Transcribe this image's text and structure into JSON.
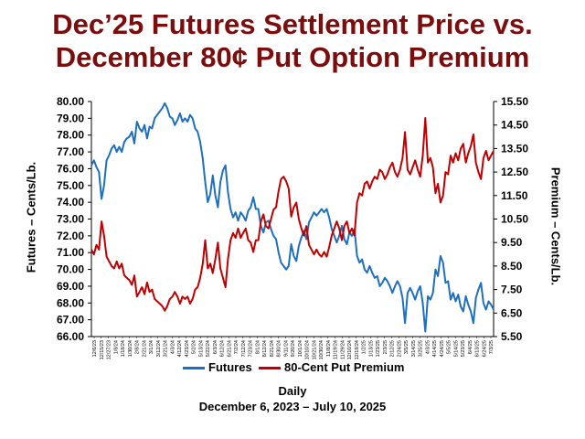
{
  "chart_data": {
    "type": "line",
    "title_line1": "Dec’25 Futures Settlement Price vs.",
    "title_line2": "December 80¢ Put Option Premium",
    "ylabel_left": "Futures – Cents/Lb.",
    "ylabel_right": "Premium – Cents/Lb.",
    "xlabel": "Daily",
    "date_range": "December 6, 2023 – July 10, 2025",
    "ylim_left": [
      66.0,
      80.0
    ],
    "ylim_right": [
      5.5,
      15.5
    ],
    "left_ticks": [
      "80.00",
      "79.00",
      "78.00",
      "77.00",
      "76.00",
      "75.00",
      "74.00",
      "73.00",
      "72.00",
      "71.00",
      "70.00",
      "69.00",
      "68.00",
      "67.00",
      "66.00"
    ],
    "right_ticks": [
      "15.50",
      "14.50",
      "13.50",
      "12.50",
      "11.50",
      "10.50",
      "9.50",
      "8.50",
      "7.50",
      "6.50",
      "5.50"
    ],
    "x_ticks": [
      "12/6/23",
      "12/15/23",
      "12/27/23",
      "1/8/24",
      "1/18/24",
      "1/30/24",
      "2/8/24",
      "2/21/24",
      "3/1/24",
      "3/12/24",
      "3/21/24",
      "4/3/24",
      "4/12/24",
      "4/23/24",
      "5/2/24",
      "5/13/24",
      "5/22/24",
      "6/3/24",
      "6/12/24",
      "6/21/24",
      "7/2/24",
      "7/12/24",
      "7/23/24",
      "8/1/24",
      "8/12/24",
      "8/21/24",
      "8/30/24",
      "9/11/24",
      "9/20/24",
      "10/1/24",
      "10/10/24",
      "10/21/24",
      "10/30/24",
      "11/8/24",
      "11/19/24",
      "11/29/24",
      "12/10/24",
      "12/19/24",
      "1/2/25",
      "1/13/25",
      "1/23/25",
      "2/3/25",
      "2/12/25",
      "2/24/25",
      "3/5/25",
      "3/14/25",
      "3/25/25",
      "4/3/25",
      "4/14/25",
      "4/24/25",
      "5/5/25",
      "5/14/25",
      "5/23/25",
      "6/4/25",
      "6/13/25",
      "6/24/25",
      "7/3/25"
    ],
    "grid": false,
    "legend_position": "bottom",
    "series": [
      {
        "name": "Futures",
        "axis": "left",
        "color": "#1f6fc0",
        "values": [
          76.2,
          76.5,
          76.1,
          75.8,
          74.2,
          75.0,
          76.5,
          76.8,
          77.2,
          77.4,
          77.0,
          77.3,
          77.0,
          77.6,
          77.8,
          77.9,
          78.2,
          77.5,
          78.8,
          78.4,
          78.2,
          78.6,
          77.8,
          78.5,
          78.4,
          79.0,
          79.2,
          79.4,
          79.6,
          79.9,
          79.6,
          79.1,
          79.0,
          78.6,
          78.9,
          79.3,
          78.8,
          79.0,
          78.8,
          79.2,
          79.0,
          78.4,
          78.2,
          77.6,
          76.6,
          75.2,
          74.0,
          74.5,
          75.6,
          74.4,
          73.7,
          75.2,
          75.9,
          76.2,
          74.6,
          73.6,
          73.1,
          73.4,
          72.9,
          73.4,
          73.2,
          72.9,
          73.5,
          73.7,
          74.3,
          73.6,
          73.6,
          72.6,
          72.2,
          72.8,
          72.9,
          72.4,
          72.0,
          71.8,
          71.0,
          70.4,
          70.2,
          70.0,
          70.2,
          71.5,
          70.8,
          70.5,
          71.4,
          71.9,
          72.3,
          71.8,
          72.8,
          73.1,
          73.4,
          73.2,
          73.4,
          73.6,
          73.4,
          73.6,
          73.1,
          72.4,
          72.0,
          71.6,
          72.0,
          72.6,
          71.8,
          71.5,
          72.2,
          72.0,
          72.4,
          70.8,
          70.4,
          70.6,
          70.0,
          69.8,
          70.2,
          69.8,
          69.5,
          69.6,
          69.0,
          69.2,
          69.5,
          69.3,
          69.0,
          68.6,
          69.0,
          69.3,
          69.0,
          68.3,
          66.8,
          68.6,
          68.9,
          68.6,
          68.2,
          68.7,
          69.0,
          68.0,
          66.3,
          68.4,
          68.2,
          68.6,
          70.0,
          69.6,
          70.8,
          70.4,
          69.2,
          69.3,
          68.2,
          68.6,
          68.1,
          68.5,
          67.8,
          67.5,
          68.4,
          67.9,
          67.5,
          66.8,
          68.3,
          68.8,
          69.2,
          68.0,
          67.6,
          68.1,
          67.9,
          67.6
        ]
      },
      {
        "name": "80-Cent Put Premium",
        "axis": "right",
        "color": "#c00000",
        "values": [
          9.2,
          9.0,
          9.4,
          9.2,
          10.4,
          9.8,
          8.9,
          8.7,
          8.5,
          8.4,
          8.7,
          8.4,
          8.6,
          8.1,
          8.0,
          7.9,
          7.7,
          8.1,
          7.2,
          7.4,
          7.6,
          7.3,
          7.8,
          7.4,
          7.5,
          7.1,
          7.0,
          6.9,
          6.8,
          6.6,
          6.8,
          7.1,
          7.2,
          7.4,
          7.2,
          6.9,
          7.2,
          7.1,
          7.2,
          6.9,
          7.1,
          7.5,
          7.6,
          8.0,
          8.6,
          9.6,
          8.4,
          8.6,
          8.2,
          8.8,
          9.5,
          8.4,
          8.0,
          7.6,
          8.8,
          9.6,
          9.9,
          9.7,
          10.1,
          9.7,
          9.9,
          10.1,
          9.6,
          9.5,
          9.1,
          9.6,
          9.6,
          10.4,
          10.7,
          10.2,
          10.1,
          10.5,
          10.9,
          11.0,
          11.7,
          12.2,
          12.3,
          12.1,
          11.8,
          10.6,
          11.0,
          11.2,
          10.5,
          10.1,
          9.8,
          10.2,
          9.4,
          9.2,
          9.0,
          9.2,
          9.0,
          8.9,
          9.1,
          8.9,
          9.3,
          9.8,
          10.1,
          10.4,
          10.1,
          9.6,
          10.2,
          10.4,
          9.9,
          10.1,
          9.8,
          11.2,
          11.6,
          11.5,
          12.0,
          12.1,
          11.8,
          12.1,
          12.3,
          12.2,
          12.6,
          12.5,
          12.2,
          12.4,
          12.7,
          12.9,
          12.5,
          12.3,
          12.6,
          13.1,
          14.2,
          12.6,
          12.4,
          12.7,
          13.0,
          12.6,
          12.3,
          13.2,
          14.8,
          12.9,
          13.1,
          12.7,
          11.6,
          12.0,
          11.2,
          11.5,
          12.5,
          12.4,
          13.2,
          12.9,
          13.3,
          13.0,
          13.5,
          13.7,
          12.9,
          13.3,
          13.6,
          14.1,
          12.9,
          12.5,
          12.2,
          13.1,
          13.4,
          13.0,
          13.2,
          13.4
        ]
      }
    ]
  }
}
